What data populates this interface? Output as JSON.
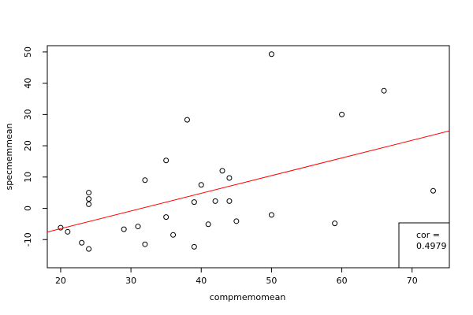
{
  "chart_data": {
    "type": "scatter",
    "x_label": "compmemomean",
    "y_label": "specmemmean",
    "x": [
      20,
      21,
      23,
      24,
      24,
      24,
      24,
      29,
      31,
      32,
      32,
      35,
      35,
      36,
      38,
      39,
      39,
      40,
      41,
      42,
      43,
      44,
      44,
      45,
      50,
      50,
      59,
      60,
      66,
      73
    ],
    "y": [
      -6.2,
      -7.5,
      -11,
      -13,
      1.3,
      3,
      5,
      -6.7,
      -5.8,
      9,
      -11.5,
      15.3,
      -2.8,
      -8.5,
      28.3,
      2,
      -12.3,
      7.5,
      -5.1,
      2.3,
      12,
      9.7,
      2.3,
      -4.1,
      49.3,
      -2.1,
      -4.8,
      30,
      37.6,
      5.6
    ],
    "color": "#000000",
    "xlim": [
      18.1,
      75.3
    ],
    "ylim": [
      -19,
      52
    ],
    "xticks": [
      20,
      30,
      40,
      50,
      60,
      70
    ],
    "yticks": [
      -10,
      0,
      10,
      20,
      30,
      40,
      50
    ],
    "regression": {
      "intercept": -17.8,
      "slope": 0.565,
      "color": "#ff0000"
    },
    "annotation": [
      "cor =",
      "0.4979"
    ]
  }
}
